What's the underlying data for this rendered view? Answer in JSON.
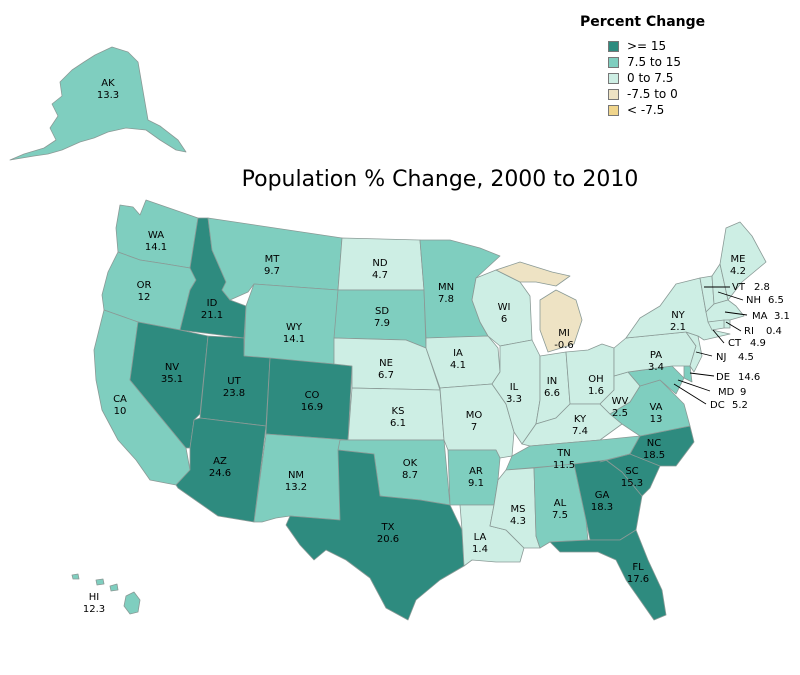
{
  "title": "Population % Change, 2000 to 2010",
  "legend": {
    "title": "Percent Change",
    "entries": [
      {
        "label": ">= 15",
        "color": "#2e8b7f"
      },
      {
        "label": "7.5 to 15",
        "color": "#7fcebf"
      },
      {
        "label": "0 to 7.5",
        "color": "#cdeee4"
      },
      {
        "label": "-7.5 to 0",
        "color": "#eee3c4"
      },
      {
        "label": "< -7.5",
        "color": "#f0d58c"
      }
    ]
  },
  "states": [
    {
      "abbr": "AK",
      "value": "13.3"
    },
    {
      "abbr": "HI",
      "value": "12.3"
    },
    {
      "abbr": "WA",
      "value": "14.1"
    },
    {
      "abbr": "OR",
      "value": "12"
    },
    {
      "abbr": "CA",
      "value": "10"
    },
    {
      "abbr": "ID",
      "value": "21.1"
    },
    {
      "abbr": "NV",
      "value": "35.1"
    },
    {
      "abbr": "MT",
      "value": "9.7"
    },
    {
      "abbr": "WY",
      "value": "14.1"
    },
    {
      "abbr": "UT",
      "value": "23.8"
    },
    {
      "abbr": "CO",
      "value": "16.9"
    },
    {
      "abbr": "AZ",
      "value": "24.6"
    },
    {
      "abbr": "NM",
      "value": "13.2"
    },
    {
      "abbr": "ND",
      "value": "4.7"
    },
    {
      "abbr": "SD",
      "value": "7.9"
    },
    {
      "abbr": "NE",
      "value": "6.7"
    },
    {
      "abbr": "KS",
      "value": "6.1"
    },
    {
      "abbr": "OK",
      "value": "8.7"
    },
    {
      "abbr": "TX",
      "value": "20.6"
    },
    {
      "abbr": "MN",
      "value": "7.8"
    },
    {
      "abbr": "IA",
      "value": "4.1"
    },
    {
      "abbr": "MO",
      "value": "7"
    },
    {
      "abbr": "AR",
      "value": "9.1"
    },
    {
      "abbr": "LA",
      "value": "1.4"
    },
    {
      "abbr": "WI",
      "value": "6"
    },
    {
      "abbr": "IL",
      "value": "3.3"
    },
    {
      "abbr": "MI",
      "value": "-0.6"
    },
    {
      "abbr": "IN",
      "value": "6.6"
    },
    {
      "abbr": "OH",
      "value": "1.6"
    },
    {
      "abbr": "KY",
      "value": "7.4"
    },
    {
      "abbr": "TN",
      "value": "11.5"
    },
    {
      "abbr": "MS",
      "value": "4.3"
    },
    {
      "abbr": "AL",
      "value": "7.5"
    },
    {
      "abbr": "GA",
      "value": "18.3"
    },
    {
      "abbr": "FL",
      "value": "17.6"
    },
    {
      "abbr": "SC",
      "value": "15.3"
    },
    {
      "abbr": "NC",
      "value": "18.5"
    },
    {
      "abbr": "VA",
      "value": "13"
    },
    {
      "abbr": "WV",
      "value": "2.5"
    },
    {
      "abbr": "PA",
      "value": "3.4"
    },
    {
      "abbr": "NY",
      "value": "2.1"
    },
    {
      "abbr": "ME",
      "value": "4.2"
    },
    {
      "abbr": "VT",
      "value": "2.8"
    },
    {
      "abbr": "NH",
      "value": "6.5"
    },
    {
      "abbr": "MA",
      "value": "3.1"
    },
    {
      "abbr": "RI",
      "value": "0.4"
    },
    {
      "abbr": "CT",
      "value": "4.9"
    },
    {
      "abbr": "NJ",
      "value": "4.5"
    },
    {
      "abbr": "DE",
      "value": "14.6"
    },
    {
      "abbr": "MD",
      "value": "9"
    },
    {
      "abbr": "DC",
      "value": "5.2"
    }
  ]
}
